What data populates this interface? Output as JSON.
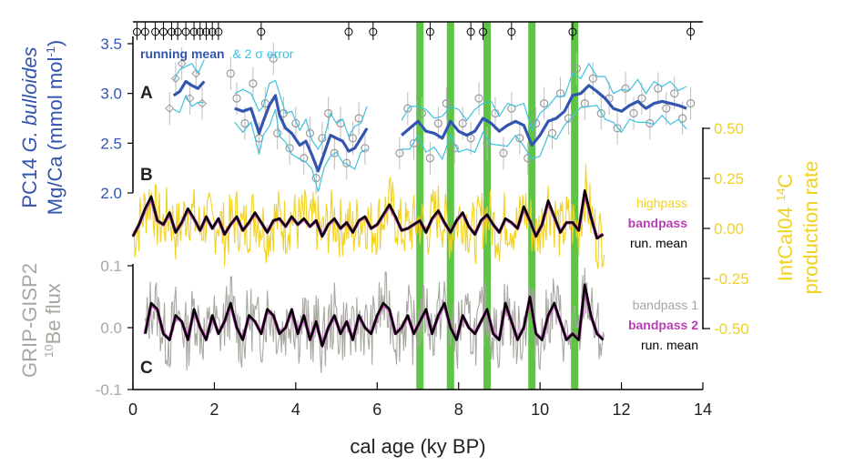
{
  "chart_data": {
    "type": "line",
    "x": {
      "label": "cal age (ky BP)",
      "range": [
        0,
        14
      ],
      "ticks": [
        0,
        2,
        4,
        6,
        8,
        10,
        12,
        14
      ]
    },
    "panel_labels": [
      "A",
      "B",
      "C"
    ],
    "axes": {
      "mgca": {
        "label_line1_prefix": "PC14 ",
        "label_line1_italic": "G. bulloides",
        "label_line2": "Mg/Ca (mmol mol",
        "label_line2_sup": "-1",
        "label_line2_end": ")",
        "ticks": [
          "2.0",
          "2.5",
          "3.0",
          "3.5"
        ],
        "tick_values": [
          2.0,
          2.5,
          3.0,
          3.5
        ],
        "color": "#3355b0"
      },
      "production": {
        "label_line1": "IntCal04 ",
        "label_sup": "14",
        "label_line1_end": "C",
        "label_line2": "production rate",
        "ticks": [
          "0.50",
          "0.25",
          "0.00",
          "-0.25",
          "-0.50"
        ],
        "tick_values": [
          0.5,
          0.25,
          0.0,
          -0.25,
          -0.5
        ],
        "color": "#f2d21e"
      },
      "beflux": {
        "label_line1": "GRIP-GISP2",
        "label_sup": "10",
        "label_line2": "Be flux",
        "ticks": [
          "0.1",
          "0.0",
          "-0.1"
        ],
        "tick_values": [
          0.1,
          0.0,
          -0.1
        ],
        "color": "#a8a8a0"
      }
    },
    "legend_a": {
      "running_mean": "running mean",
      "amp": "& 2",
      "sigma": "σ",
      "error": " error"
    },
    "legend_b": [
      "highpass",
      "bandpass",
      "run. mean"
    ],
    "legend_c": [
      "bandpass 1",
      "bandpass 2",
      "run. mean"
    ],
    "highlight_bands_ky": [
      7.05,
      7.8,
      8.7,
      9.8,
      10.85
    ],
    "age_control_ky": [
      0.1,
      0.3,
      0.55,
      0.75,
      0.95,
      1.1,
      1.3,
      1.5,
      1.65,
      1.8,
      1.95,
      2.1,
      3.15,
      5.3,
      5.9,
      7.3,
      8.3,
      8.6,
      9.3,
      10.8,
      13.7
    ],
    "series": {
      "mgca_running_mean": {
        "x": [
          1.0,
          1.15,
          1.3,
          1.45,
          1.6,
          1.75,
          2.5,
          2.7,
          2.9,
          3.1,
          3.2,
          3.35,
          3.5,
          3.6,
          3.75,
          3.9,
          4.1,
          4.25,
          4.4,
          4.55,
          4.7,
          4.85,
          5.0,
          5.15,
          5.3,
          5.45,
          5.6,
          5.75,
          6.6,
          6.8,
          7.0,
          7.2,
          7.4,
          7.6,
          7.8,
          8.0,
          8.2,
          8.4,
          8.6,
          8.8,
          9.0,
          9.2,
          9.4,
          9.6,
          9.8,
          10.0,
          10.2,
          10.4,
          10.6,
          10.8,
          11.0,
          11.2,
          11.4,
          11.6,
          11.8,
          12.0,
          12.2,
          12.4,
          12.6,
          12.8,
          13.0,
          13.2,
          13.4,
          13.6
        ],
        "y": [
          2.98,
          3.02,
          3.12,
          3.08,
          3.05,
          3.12,
          2.85,
          2.82,
          2.85,
          2.6,
          2.72,
          2.88,
          2.98,
          2.78,
          2.65,
          2.6,
          2.48,
          2.52,
          2.38,
          2.22,
          2.4,
          2.58,
          2.55,
          2.52,
          2.42,
          2.45,
          2.55,
          2.65,
          2.58,
          2.65,
          2.72,
          2.62,
          2.6,
          2.55,
          2.72,
          2.62,
          2.58,
          2.62,
          2.75,
          2.7,
          2.62,
          2.68,
          2.72,
          2.68,
          2.48,
          2.58,
          2.72,
          2.75,
          2.82,
          2.98,
          3.0,
          3.08,
          3.02,
          2.95,
          2.85,
          2.82,
          2.88,
          2.92,
          2.85,
          2.9,
          2.92,
          2.9,
          2.88,
          2.85
        ]
      },
      "mgca_error_upper_offset": 0.18,
      "mgca_error_lower_offset": -0.18,
      "mgca_raw_points": {
        "x": [
          0.9,
          1.05,
          1.2,
          1.4,
          1.55,
          1.7,
          2.4,
          2.55,
          2.75,
          2.95,
          3.1,
          3.25,
          3.45,
          3.55,
          3.7,
          3.85,
          4.0,
          4.2,
          4.35,
          4.5,
          4.65,
          4.8,
          4.95,
          5.1,
          5.25,
          5.4,
          5.55,
          5.7,
          6.55,
          6.75,
          6.9,
          7.1,
          7.3,
          7.5,
          7.7,
          7.9,
          8.1,
          8.3,
          8.5,
          8.7,
          8.9,
          9.1,
          9.3,
          9.5,
          9.7,
          9.9,
          10.1,
          10.3,
          10.5,
          10.7,
          10.9,
          11.1,
          11.3,
          11.5,
          11.7,
          11.9,
          12.1,
          12.3,
          12.5,
          12.7,
          12.9,
          13.1,
          13.3,
          13.5,
          13.7
        ],
        "y": [
          2.85,
          3.15,
          3.3,
          2.95,
          3.2,
          2.9,
          3.2,
          2.95,
          2.7,
          3.1,
          2.55,
          2.9,
          3.35,
          2.6,
          2.8,
          2.45,
          2.7,
          2.35,
          2.6,
          2.15,
          2.55,
          2.8,
          2.4,
          2.7,
          2.3,
          2.55,
          2.75,
          2.45,
          2.4,
          2.85,
          2.5,
          2.8,
          2.35,
          2.7,
          2.9,
          2.45,
          2.7,
          2.55,
          2.95,
          2.5,
          2.8,
          2.4,
          2.85,
          2.55,
          2.35,
          2.7,
          2.9,
          2.6,
          3.0,
          2.75,
          3.25,
          2.9,
          3.15,
          2.8,
          2.95,
          2.65,
          3.05,
          2.8,
          2.95,
          2.7,
          3.05,
          2.85,
          3.0,
          2.75,
          2.9
        ]
      },
      "c14_running_mean": {
        "x": [
          0.0,
          0.15,
          0.3,
          0.45,
          0.6,
          0.75,
          0.9,
          1.05,
          1.2,
          1.35,
          1.5,
          1.65,
          1.8,
          1.95,
          2.1,
          2.25,
          2.4,
          2.55,
          2.7,
          2.85,
          3.0,
          3.15,
          3.3,
          3.45,
          3.6,
          3.75,
          3.9,
          4.05,
          4.2,
          4.35,
          4.5,
          4.65,
          4.8,
          4.95,
          5.1,
          5.25,
          5.4,
          5.55,
          5.7,
          5.85,
          6.0,
          6.15,
          6.3,
          6.45,
          6.6,
          6.75,
          6.9,
          7.05,
          7.2,
          7.35,
          7.5,
          7.65,
          7.8,
          7.95,
          8.1,
          8.25,
          8.4,
          8.55,
          8.7,
          8.85,
          9.0,
          9.15,
          9.3,
          9.45,
          9.6,
          9.75,
          9.9,
          10.05,
          10.2,
          10.35,
          10.5,
          10.65,
          10.8,
          10.95,
          11.1,
          11.25,
          11.4,
          11.55
        ],
        "y": [
          -0.04,
          0.02,
          0.1,
          0.16,
          0.04,
          0.02,
          0.08,
          -0.02,
          0.03,
          0.1,
          0.05,
          -0.01,
          0.06,
          0.0,
          0.05,
          -0.03,
          0.02,
          0.06,
          -0.01,
          0.03,
          0.08,
          0.03,
          -0.02,
          0.04,
          0.05,
          0.01,
          0.06,
          0.02,
          0.05,
          0.01,
          0.04,
          -0.04,
          0.02,
          0.05,
          0.0,
          0.03,
          -0.02,
          0.04,
          0.06,
          0.0,
          0.02,
          0.07,
          0.12,
          0.06,
          -0.01,
          0.0,
          0.02,
          0.04,
          -0.02,
          0.05,
          0.09,
          0.03,
          -0.02,
          0.04,
          0.08,
          0.01,
          -0.03,
          0.04,
          0.07,
          0.02,
          -0.02,
          0.05,
          0.03,
          0.0,
          0.11,
          0.04,
          -0.04,
          0.02,
          0.14,
          0.06,
          -0.02,
          0.03,
          0.03,
          -0.01,
          0.19,
          0.06,
          -0.05,
          -0.03
        ]
      },
      "be_running_mean": {
        "x": [
          0.3,
          0.45,
          0.6,
          0.75,
          0.9,
          1.05,
          1.2,
          1.35,
          1.5,
          1.65,
          1.8,
          1.95,
          2.1,
          2.25,
          2.4,
          2.55,
          2.7,
          2.85,
          3.0,
          3.15,
          3.3,
          3.45,
          3.6,
          3.75,
          3.9,
          4.05,
          4.2,
          4.35,
          4.5,
          4.65,
          4.8,
          4.95,
          5.1,
          5.25,
          5.4,
          5.55,
          5.7,
          5.85,
          6.0,
          6.15,
          6.3,
          6.45,
          6.6,
          6.75,
          6.9,
          7.05,
          7.2,
          7.35,
          7.5,
          7.65,
          7.8,
          7.95,
          8.1,
          8.25,
          8.4,
          8.55,
          8.7,
          8.85,
          9.0,
          9.15,
          9.3,
          9.45,
          9.6,
          9.75,
          9.9,
          10.05,
          10.2,
          10.35,
          10.5,
          10.65,
          10.8,
          10.95,
          11.1,
          11.25,
          11.4,
          11.55
        ],
        "y": [
          -0.01,
          0.04,
          0.03,
          -0.01,
          -0.02,
          0.02,
          0.01,
          -0.02,
          0.03,
          0.0,
          -0.02,
          0.02,
          -0.01,
          0.01,
          0.04,
          0.0,
          -0.02,
          0.02,
          0.01,
          -0.01,
          0.03,
          0.02,
          -0.01,
          0.0,
          0.03,
          -0.01,
          0.02,
          -0.02,
          0.01,
          -0.03,
          0.0,
          0.02,
          -0.01,
          0.01,
          -0.02,
          0.02,
          0.0,
          -0.01,
          0.02,
          0.04,
          0.03,
          -0.01,
          0.0,
          0.02,
          -0.01,
          0.01,
          0.03,
          -0.01,
          0.02,
          0.04,
          0.0,
          -0.02,
          0.02,
          0.0,
          -0.01,
          0.01,
          0.03,
          -0.01,
          -0.02,
          0.04,
          0.01,
          -0.02,
          0.0,
          0.05,
          -0.01,
          -0.02,
          0.02,
          0.04,
          0.01,
          -0.02,
          -0.01,
          -0.02,
          0.07,
          0.02,
          -0.01,
          -0.02
        ]
      }
    }
  }
}
